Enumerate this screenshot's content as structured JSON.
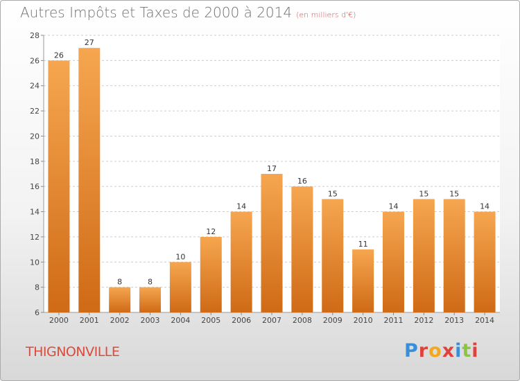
{
  "header": {
    "title": "Autres Impôts et Taxes de 2000 à 2014",
    "subtitle": "(en milliers d'€)"
  },
  "footer": {
    "commune": "THIGNONVILLE",
    "brand": "Proxiti"
  },
  "colors": {
    "bar_light": "#f6a650",
    "bar_dark": "#cf6a16",
    "grid": "#cccccc",
    "title": "#707070",
    "commune": "#d94b3a",
    "brand_letters": [
      "#3a8ed8",
      "#e0413a",
      "#f2a81d",
      "#e0413a",
      "#3a8ed8",
      "#8cc63f",
      "#e0413a"
    ]
  },
  "chart_data": {
    "type": "bar",
    "title": "Autres Impôts et Taxes de 2000 à 2014",
    "subtitle": "(en milliers d'€)",
    "categories": [
      "2000",
      "2001",
      "2002",
      "2003",
      "2004",
      "2005",
      "2006",
      "2007",
      "2008",
      "2009",
      "2010",
      "2011",
      "2012",
      "2013",
      "2014"
    ],
    "values": [
      26,
      27,
      8,
      8,
      10,
      12,
      14,
      17,
      16,
      15,
      11,
      14,
      15,
      15,
      14
    ],
    "ylim": [
      6,
      28
    ],
    "yticks": [
      6,
      8,
      10,
      12,
      14,
      16,
      18,
      20,
      22,
      24,
      26,
      28
    ],
    "grid": true,
    "xlabel": "",
    "ylabel": ""
  }
}
